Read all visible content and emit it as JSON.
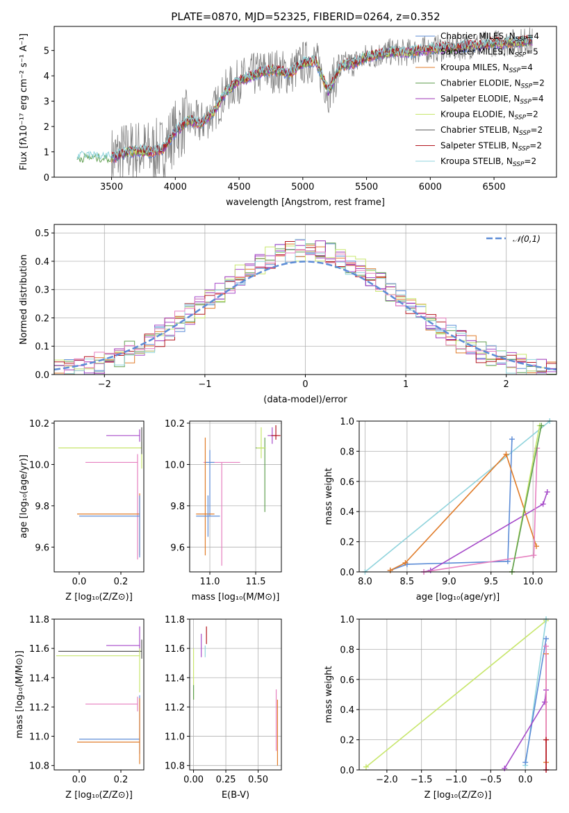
{
  "title": "PLATE=0870, MJD=52325, FIBERID=0264, z=0.352",
  "colors": {
    "Chabrier MILES": "#5b8bd6",
    "Salpeter MILES": "#a64ac9",
    "Kroupa MILES": "#e07b28",
    "Chabrier ELODIE": "#5f9e4f",
    "Salpeter ELODIE": "#9b30b5",
    "Kroupa ELODIE": "#c7e66b",
    "Chabrier STELIB": "#555555",
    "Salpeter STELIB": "#b3151d",
    "Kroupa STELIB": "#8fd3dc",
    "pink": "#e67fbf",
    "data": "#808080",
    "normal": "#5b8bd6"
  },
  "chart_data": [
    {
      "type": "line",
      "name": "spectrum",
      "xlabel": "wavelength [Angstrom, rest frame]",
      "ylabel": "Flux [fλ10⁻¹⁷ erg cm⁻² s⁻¹ A⁻¹]",
      "xlim": [
        3050,
        6990
      ],
      "ylim": [
        0,
        5.95
      ],
      "xticks": [
        "3500",
        "4000",
        "4500",
        "5000",
        "5500",
        "6000",
        "6500"
      ],
      "yticks": [
        "0",
        "1",
        "2",
        "3",
        "4",
        "5"
      ],
      "legend_position": "upper right",
      "legend": [
        {
          "label": "Chabrier MILES, N",
          "sub": "SSP",
          "tail": "=4",
          "color": "#5b8bd6"
        },
        {
          "label": "Salpeter MILES, N",
          "sub": "SSP",
          "tail": "=5",
          "color": "#a64ac9"
        },
        {
          "label": "Kroupa MILES, N",
          "sub": "SSP",
          "tail": "=4",
          "color": "#e07b28"
        },
        {
          "label": "Chabrier ELODIE, N",
          "sub": "SSP",
          "tail": "=2",
          "color": "#5f9e4f"
        },
        {
          "label": "Salpeter ELODIE, N",
          "sub": "SSP",
          "tail": "=4",
          "color": "#9b30b5"
        },
        {
          "label": "Kroupa ELODIE, N",
          "sub": "SSP",
          "tail": "=2",
          "color": "#c7e66b"
        },
        {
          "label": "Chabrier STELIB, N",
          "sub": "SSP",
          "tail": "=2",
          "color": "#555555"
        },
        {
          "label": "Salpeter STELIB, N",
          "sub": "SSP",
          "tail": "=2",
          "color": "#b3151d"
        },
        {
          "label": "Kroupa STELIB, N",
          "sub": "SSP",
          "tail": "=2",
          "color": "#8fd3dc"
        }
      ],
      "continuum": {
        "x": [
          3230,
          3300,
          3400,
          3500,
          3600,
          3700,
          3800,
          3900,
          4000,
          4100,
          4200,
          4300,
          4400,
          4500,
          4600,
          4700,
          4800,
          4900,
          5000,
          5100,
          5200,
          5300,
          5400,
          5500,
          5600,
          5700,
          5800,
          5900,
          6000,
          6100,
          6200,
          6300,
          6400,
          6500,
          6600,
          6700,
          6800
        ],
        "y": [
          0.75,
          0.8,
          0.78,
          0.75,
          0.95,
          1.05,
          1.0,
          1.1,
          1.8,
          2.25,
          2.1,
          2.6,
          3.4,
          3.8,
          4.0,
          4.2,
          4.2,
          4.1,
          4.5,
          4.6,
          3.4,
          4.4,
          4.5,
          4.75,
          4.85,
          4.95,
          4.9,
          5.0,
          5.05,
          5.1,
          5.1,
          5.2,
          5.2,
          5.3,
          5.3,
          5.35,
          5.4
        ]
      },
      "data_range": [
        3500,
        6800
      ]
    },
    {
      "type": "histogram",
      "name": "residuals",
      "xlabel": "(data-model)/error",
      "ylabel": "Normed distribution",
      "xlim": [
        -2.5,
        2.5
      ],
      "ylim": [
        0,
        0.53
      ],
      "xticks": [
        "−2",
        "−1",
        "0",
        "1",
        "2"
      ],
      "yticks": [
        "0.0",
        "0.1",
        "0.2",
        "0.3",
        "0.4",
        "0.5"
      ],
      "grid": true,
      "legend": [
        {
          "label": "𝒩(0,1)",
          "style": "dashed",
          "color": "#5b8bd6"
        }
      ],
      "bins": {
        "start": -2.5,
        "width": 0.1,
        "count": 50
      },
      "base_shape": "gaussian-like, peak 0.42 near 0"
    },
    {
      "type": "errorbar",
      "name": "age_vs_Z",
      "xlabel": "Z [log₁₀(Z/Z⊙)]",
      "ylabel": "age  [log₁₀(age/yr)]",
      "xlim": [
        -0.12,
        0.31
      ],
      "ylim": [
        9.48,
        10.21
      ],
      "xticks": [
        "0.0",
        "0.2"
      ],
      "yticks": [
        "9.6",
        "9.8",
        "10.0",
        "10.2"
      ],
      "points": [
        {
          "x": 0.29,
          "y": 10.14,
          "xerr": [
            0.16,
            0.0
          ],
          "yerr": [
            0.03,
            0.03
          ],
          "color": "#a64ac9"
        },
        {
          "x": 0.3,
          "y": 10.08,
          "xerr": [
            0.4,
            0.0
          ],
          "yerr": [
            0.1,
            0.03
          ],
          "color": "#c7e66b"
        },
        {
          "x": 0.28,
          "y": 10.01,
          "xerr": [
            0.25,
            0.0
          ],
          "yerr": [
            0.47,
            0.04
          ],
          "color": "#e67fbf"
        },
        {
          "x": 0.29,
          "y": 9.76,
          "xerr": [
            0.3,
            0.0
          ],
          "yerr": [
            0.2,
            0.1
          ],
          "color": "#e07b28"
        },
        {
          "x": 0.29,
          "y": 9.75,
          "xerr": [
            0.29,
            0.0
          ],
          "yerr": [
            0.2,
            0.1
          ],
          "color": "#5b8bd6"
        },
        {
          "x": 0.3,
          "y": 10.1,
          "xerr": [
            0.0,
            0.0
          ],
          "yerr": [
            0.05,
            0.08
          ],
          "color": "#555555"
        }
      ]
    },
    {
      "type": "errorbar",
      "name": "age_vs_mass",
      "xlabel": "mass [log₁₀(M/M⊙)]",
      "ylabel": "",
      "xlim": [
        10.78,
        11.78
      ],
      "ylim": [
        9.48,
        10.21
      ],
      "xticks": [
        "11.0",
        "11.5"
      ],
      "yticks": [
        "9.6",
        "9.8",
        "10.0",
        "10.2"
      ],
      "grid": true,
      "points": [
        {
          "x": 11.68,
          "y": 10.14,
          "xerr": [
            0.05,
            0.05
          ],
          "yerr": [
            0.04,
            0.04
          ],
          "color": "#a64ac9"
        },
        {
          "x": 11.72,
          "y": 10.14,
          "xerr": [
            0.05,
            0.05
          ],
          "yerr": [
            0.02,
            0.05
          ],
          "color": "#b3151d"
        },
        {
          "x": 11.6,
          "y": 10.08,
          "xerr": [
            0.1,
            0.0
          ],
          "yerr": [
            0.31,
            0.05
          ],
          "color": "#5f9e4f"
        },
        {
          "x": 11.56,
          "y": 10.08,
          "xerr": [
            0.05,
            0.05
          ],
          "yerr": [
            0.05,
            0.1
          ],
          "color": "#c7e66b"
        },
        {
          "x": 11.13,
          "y": 10.01,
          "xerr": [
            0.2,
            0.2
          ],
          "yerr": [
            0.5,
            0.0
          ],
          "color": "#e67fbf"
        },
        {
          "x": 11.0,
          "y": 10.01,
          "xerr": [
            0.05,
            0.05
          ],
          "yerr": [
            0.26,
            0.06
          ],
          "color": "#5b8bd6"
        },
        {
          "x": 10.95,
          "y": 9.76,
          "xerr": [
            0.1,
            0.1
          ],
          "yerr": [
            0.2,
            0.37
          ],
          "color": "#e07b28"
        },
        {
          "x": 10.98,
          "y": 9.75,
          "xerr": [
            0.13,
            0.13
          ],
          "yerr": [
            0.1,
            0.1
          ],
          "color": "#5b8bd6"
        }
      ]
    },
    {
      "type": "line",
      "name": "mass_weight_vs_age",
      "xlabel": "age  [log₁₀(age/yr)]",
      "ylabel": "mass weight",
      "xlim": [
        7.93,
        10.28
      ],
      "ylim": [
        0,
        1.0
      ],
      "xticks": [
        "8.0",
        "8.5",
        "9.0",
        "9.5",
        "10.0"
      ],
      "yticks": [
        "0.0",
        "0.2",
        "0.4",
        "0.6",
        "0.8",
        "1.0"
      ],
      "grid": true,
      "series": [
        {
          "color": "#8fd3dc",
          "x": [
            8.0,
            10.2
          ],
          "y": [
            0.0,
            1.0
          ]
        },
        {
          "color": "#5b8bd6",
          "x": [
            8.3,
            8.5,
            9.7,
            9.75
          ],
          "y": [
            0.01,
            0.05,
            0.07,
            0.88
          ]
        },
        {
          "color": "#e07b28",
          "x": [
            8.3,
            8.48,
            9.68,
            10.04
          ],
          "y": [
            0.01,
            0.06,
            0.78,
            0.17
          ]
        },
        {
          "color": "#a64ac9",
          "x": [
            8.7,
            8.78,
            10.12,
            10.17
          ],
          "y": [
            0.0,
            0.01,
            0.45,
            0.53
          ]
        },
        {
          "color": "#e67fbf",
          "x": [
            8.7,
            10.01,
            10.05
          ],
          "y": [
            0.0,
            0.11,
            0.82
          ]
        },
        {
          "color": "#c7e66b",
          "x": [
            9.75,
            10.08
          ],
          "y": [
            0.0,
            0.97
          ]
        },
        {
          "color": "#5f9e4f",
          "x": [
            9.75,
            10.1
          ],
          "y": [
            0.0,
            0.97
          ]
        }
      ]
    },
    {
      "type": "errorbar",
      "name": "mass_vs_Z",
      "xlabel": "Z [log₁₀(Z/Z⊙)]",
      "ylabel": "mass [log₁₀(M/M⊙)]",
      "xlim": [
        -0.12,
        0.31
      ],
      "ylim": [
        10.77,
        11.8
      ],
      "xticks": [
        "0.0",
        "0.2"
      ],
      "yticks": [
        "10.8",
        "11.0",
        "11.2",
        "11.4",
        "11.6",
        "11.8"
      ],
      "points": [
        {
          "x": 0.29,
          "y": 11.62,
          "xerr": [
            0.16,
            0.0
          ],
          "yerr": [
            0.05,
            0.13
          ],
          "color": "#a64ac9"
        },
        {
          "x": 0.3,
          "y": 11.58,
          "xerr": [
            0.4,
            0.0
          ],
          "yerr": [
            0.05,
            0.08
          ],
          "color": "#555555"
        },
        {
          "x": 0.29,
          "y": 11.55,
          "xerr": [
            0.4,
            0.0
          ],
          "yerr": [
            0.25,
            0.05
          ],
          "color": "#c7e66b"
        },
        {
          "x": 0.28,
          "y": 11.22,
          "xerr": [
            0.25,
            0.0
          ],
          "yerr": [
            0.05,
            0.05
          ],
          "color": "#e67fbf"
        },
        {
          "x": 0.29,
          "y": 10.98,
          "xerr": [
            0.29,
            0.0
          ],
          "yerr": [
            0.1,
            0.3
          ],
          "color": "#5b8bd6"
        },
        {
          "x": 0.29,
          "y": 10.96,
          "xerr": [
            0.3,
            0.0
          ],
          "yerr": [
            0.15,
            0.3
          ],
          "color": "#e07b28"
        }
      ]
    },
    {
      "type": "errorbar",
      "name": "mass_vs_EBV",
      "xlabel": "E(B-V)",
      "ylabel": "",
      "xlim": [
        -0.03,
        0.68
      ],
      "ylim": [
        10.77,
        11.8
      ],
      "xticks": [
        "0.00",
        "0.25",
        "0.50"
      ],
      "yticks": [
        "10.8",
        "11.0",
        "11.2",
        "11.4",
        "11.6",
        "11.8"
      ],
      "grid": true,
      "points": [
        {
          "x": 0.0,
          "y": 11.4,
          "xerr": [
            0.0,
            0.0
          ],
          "yerr": [
            0.15,
            0.2
          ],
          "color": "#c7e66b"
        },
        {
          "x": 0.0,
          "y": 11.3,
          "xerr": [
            0.0,
            0.0
          ],
          "yerr": [
            0.05,
            0.05
          ],
          "color": "#5f9e4f"
        },
        {
          "x": 0.06,
          "y": 11.62,
          "xerr": [
            0.0,
            0.0
          ],
          "yerr": [
            0.08,
            0.08
          ],
          "color": "#a64ac9"
        },
        {
          "x": 0.1,
          "y": 11.68,
          "xerr": [
            0.0,
            0.0
          ],
          "yerr": [
            0.05,
            0.07
          ],
          "color": "#b3151d"
        },
        {
          "x": 0.09,
          "y": 11.58,
          "xerr": [
            0.0,
            0.0
          ],
          "yerr": [
            0.04,
            0.04
          ],
          "color": "#8fd3dc"
        },
        {
          "x": 0.64,
          "y": 11.1,
          "xerr": [
            0.0,
            0.0
          ],
          "yerr": [
            0.2,
            0.22
          ],
          "color": "#e67fbf"
        },
        {
          "x": 0.65,
          "y": 11.05,
          "xerr": [
            0.0,
            0.0
          ],
          "yerr": [
            0.25,
            0.2
          ],
          "color": "#e07b28"
        }
      ]
    },
    {
      "type": "line",
      "name": "mass_weight_vs_Z",
      "xlabel": "Z [log₁₀(Z/Z⊙)]",
      "ylabel": "mass weight",
      "xlim": [
        -2.4,
        0.45
      ],
      "ylim": [
        0,
        1.0
      ],
      "xticks": [
        "−2.0",
        "−1.5",
        "−1.0",
        "−0.5",
        "0.0"
      ],
      "yticks": [
        "0.0",
        "0.2",
        "0.4",
        "0.6",
        "0.8",
        "1.0"
      ],
      "grid": true,
      "series": [
        {
          "color": "#c7e66b",
          "x": [
            -2.3,
            0.3
          ],
          "y": [
            0.02,
            0.99
          ]
        },
        {
          "color": "#8fd3dc",
          "x": [
            0.0,
            0.3
          ],
          "y": [
            0.03,
            1.0
          ]
        },
        {
          "color": "#5b8bd6",
          "x": [
            0.0,
            0.3
          ],
          "y": [
            0.05,
            0.87
          ]
        },
        {
          "color": "#e07b28",
          "x": [
            0.3,
            0.3
          ],
          "y": [
            0.05,
            0.77
          ]
        },
        {
          "color": "#a64ac9",
          "x": [
            -0.3,
            0.28,
            0.3
          ],
          "y": [
            0.01,
            0.45,
            0.53
          ]
        },
        {
          "color": "#e67fbf",
          "x": [
            0.3,
            0.3
          ],
          "y": [
            0.0,
            0.82
          ]
        },
        {
          "color": "#b3151d",
          "x": [
            0.3,
            0.3
          ],
          "y": [
            0.0,
            0.2
          ]
        }
      ]
    }
  ]
}
